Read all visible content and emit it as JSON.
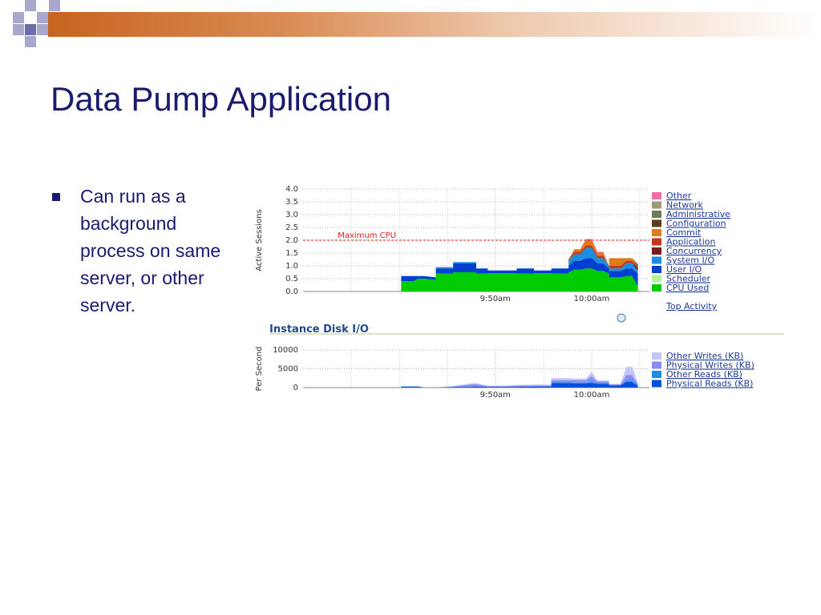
{
  "slide": {
    "title": "Data Pump Application",
    "bullet": "Can run as a background process on same server, or other server."
  },
  "colors": {
    "title": "#1a1a6e",
    "accent": "#c7641f",
    "square_light": "#a7a8cc",
    "square_dark": "#6b6ea8"
  },
  "chart_data": [
    {
      "type": "area",
      "stacked": true,
      "ylabel": "Active Sessions",
      "yticks": [
        "0.0",
        "0.5",
        "1.0",
        "1.5",
        "2.0",
        "2.5",
        "3.0",
        "3.5",
        "4.0"
      ],
      "ylim": [
        0,
        4
      ],
      "xticks": [
        {
          "label": "9:50am",
          "x": 9.833
        },
        {
          "label": "10:00am",
          "x": 10.0
        }
      ],
      "xlim": [
        9.5,
        10.1
      ],
      "annotation": {
        "label": "Maximum CPU",
        "y": 2.0
      },
      "x": [
        9.5,
        9.67,
        9.67,
        9.69,
        9.7,
        9.71,
        9.73,
        9.73,
        9.76,
        9.76,
        9.8,
        9.8,
        9.82,
        9.82,
        9.87,
        9.87,
        9.9,
        9.9,
        9.93,
        9.93,
        9.96,
        9.96,
        9.97,
        9.98,
        9.99,
        10.0,
        10.01,
        10.02,
        10.03,
        10.03,
        10.05,
        10.06,
        10.07,
        10.08
      ],
      "series": [
        {
          "name": "CPU Used",
          "color": "#00cc00",
          "values": [
            0,
            0,
            0.4,
            0.4,
            0.5,
            0.5,
            0.45,
            0.7,
            0.7,
            0.75,
            0.75,
            0.7,
            0.7,
            0.72,
            0.72,
            0.7,
            0.7,
            0.72,
            0.72,
            0.7,
            0.7,
            0.75,
            0.85,
            0.85,
            0.9,
            0.9,
            0.8,
            0.8,
            0.7,
            0.55,
            0.55,
            0.6,
            0.6,
            0.2
          ]
        },
        {
          "name": "Scheduler",
          "color": "#b6f0a0",
          "values": [
            0,
            0,
            0,
            0,
            0,
            0,
            0,
            0,
            0,
            0,
            0,
            0,
            0,
            0,
            0,
            0,
            0,
            0,
            0,
            0,
            0,
            0,
            0,
            0,
            0,
            0,
            0,
            0,
            0,
            0,
            0,
            0,
            0,
            0
          ]
        },
        {
          "name": "User I/O",
          "color": "#0040d0",
          "values": [
            0,
            0,
            0.2,
            0.2,
            0.1,
            0.1,
            0.1,
            0.2,
            0.2,
            0.35,
            0.35,
            0.2,
            0.2,
            0.1,
            0.1,
            0.2,
            0.2,
            0.1,
            0.1,
            0.2,
            0.2,
            0.25,
            0.35,
            0.35,
            0.4,
            0.4,
            0.3,
            0.3,
            0.2,
            0.25,
            0.25,
            0.3,
            0.3,
            0.5
          ]
        },
        {
          "name": "System I/O",
          "color": "#1a8ee0",
          "values": [
            0,
            0,
            0,
            0,
            0,
            0,
            0,
            0.05,
            0.05,
            0.05,
            0.05,
            0,
            0,
            0,
            0,
            0,
            0,
            0,
            0,
            0,
            0,
            0.2,
            0.25,
            0.25,
            0.4,
            0.4,
            0.2,
            0.2,
            0.1,
            0.1,
            0.1,
            0.2,
            0.2,
            0.1
          ]
        },
        {
          "name": "Concurrency",
          "color": "#7a1d1d",
          "values": [
            0,
            0,
            0,
            0,
            0,
            0,
            0,
            0,
            0,
            0,
            0,
            0,
            0,
            0,
            0,
            0,
            0,
            0,
            0,
            0,
            0,
            0,
            0,
            0,
            0,
            0,
            0,
            0,
            0,
            0,
            0,
            0,
            0,
            0.15
          ]
        },
        {
          "name": "Application",
          "color": "#c0391f",
          "values": [
            0,
            0,
            0,
            0,
            0,
            0,
            0,
            0,
            0,
            0,
            0,
            0,
            0,
            0,
            0,
            0,
            0,
            0,
            0,
            0,
            0,
            0.05,
            0.1,
            0.1,
            0.1,
            0.1,
            0.1,
            0.1,
            0,
            0.1,
            0.1,
            0.1,
            0.1,
            0
          ]
        },
        {
          "name": "Commit",
          "color": "#e07b1a",
          "values": [
            0,
            0,
            0,
            0,
            0,
            0,
            0,
            0,
            0,
            0,
            0,
            0,
            0,
            0,
            0,
            0,
            0,
            0,
            0,
            0,
            0,
            0,
            0.1,
            0.1,
            0.2,
            0.2,
            0.1,
            0.1,
            0,
            0.3,
            0.3,
            0.1,
            0.1,
            0
          ]
        },
        {
          "name": "Configuration",
          "color": "#5a3f1a",
          "values": [
            0,
            0,
            0,
            0,
            0,
            0,
            0,
            0,
            0,
            0,
            0,
            0,
            0,
            0,
            0,
            0,
            0,
            0,
            0,
            0,
            0,
            0,
            0,
            0,
            0,
            0,
            0,
            0,
            0,
            0,
            0,
            0,
            0,
            0.1
          ]
        },
        {
          "name": "Administrative",
          "color": "#6e7a5a",
          "values": [
            0,
            0,
            0,
            0,
            0,
            0,
            0,
            0,
            0,
            0,
            0,
            0,
            0,
            0,
            0,
            0,
            0,
            0,
            0,
            0,
            0,
            0,
            0,
            0,
            0,
            0,
            0,
            0,
            0,
            0,
            0,
            0,
            0,
            0
          ]
        },
        {
          "name": "Network",
          "color": "#9c9a78",
          "values": [
            0,
            0,
            0,
            0,
            0,
            0,
            0,
            0,
            0,
            0,
            0,
            0,
            0,
            0,
            0,
            0,
            0,
            0,
            0,
            0,
            0,
            0,
            0,
            0,
            0,
            0,
            0,
            0,
            0,
            0,
            0,
            0,
            0,
            0
          ]
        },
        {
          "name": "Other",
          "color": "#ee6fa8",
          "values": [
            0,
            0,
            0,
            0,
            0,
            0,
            0,
            0,
            0,
            0,
            0,
            0,
            0,
            0,
            0,
            0,
            0,
            0,
            0,
            0,
            0,
            0,
            0,
            0,
            0.05,
            0.05,
            0.05,
            0.05,
            0,
            0,
            0,
            0,
            0,
            0
          ]
        }
      ],
      "extra_link": "Top Activity",
      "grid": true,
      "legend": "right"
    },
    {
      "type": "area",
      "stacked": true,
      "title": "Instance Disk I/O",
      "ylabel": "Per Second",
      "yticks": [
        "0",
        "5000",
        "10000"
      ],
      "ylim": [
        0,
        10000
      ],
      "xticks": [
        {
          "label": "9:50am",
          "x": 9.833
        },
        {
          "label": "10:00am",
          "x": 10.0
        }
      ],
      "xlim": [
        9.5,
        10.1
      ],
      "x": [
        9.5,
        9.67,
        9.67,
        9.7,
        9.71,
        9.73,
        9.76,
        9.79,
        9.8,
        9.82,
        9.85,
        9.87,
        9.9,
        9.93,
        9.93,
        9.96,
        9.97,
        9.99,
        10.0,
        10.01,
        10.03,
        10.03,
        10.05,
        10.06,
        10.07,
        10.08
      ],
      "series": [
        {
          "name": "Physical Reads (KB)",
          "color": "#0050e0",
          "values": [
            0,
            0,
            300,
            300,
            0,
            0,
            200,
            200,
            300,
            200,
            200,
            200,
            300,
            300,
            1200,
            1200,
            1100,
            1100,
            1200,
            1000,
            1000,
            600,
            600,
            1500,
            1500,
            500
          ]
        },
        {
          "name": "Other Reads (KB)",
          "color": "#1a8ee0",
          "values": [
            0,
            0,
            0,
            0,
            0,
            0,
            0,
            0,
            0,
            0,
            0,
            0,
            0,
            0,
            200,
            200,
            200,
            200,
            300,
            200,
            200,
            100,
            100,
            300,
            300,
            100
          ]
        },
        {
          "name": "Physical Writes (KB)",
          "color": "#8a8cf2",
          "values": [
            0,
            0,
            0,
            0,
            0,
            0,
            100,
            600,
            600,
            200,
            200,
            300,
            300,
            300,
            600,
            600,
            700,
            700,
            1500,
            400,
            400,
            200,
            200,
            1500,
            1500,
            400
          ]
        },
        {
          "name": "Other Writes (KB)",
          "color": "#c4c6fa",
          "values": [
            0,
            0,
            0,
            0,
            0,
            0,
            100,
            300,
            300,
            100,
            100,
            200,
            200,
            200,
            500,
            500,
            400,
            400,
            1200,
            300,
            300,
            100,
            100,
            2200,
            2200,
            300
          ]
        }
      ],
      "grid": true,
      "legend": "right"
    }
  ]
}
